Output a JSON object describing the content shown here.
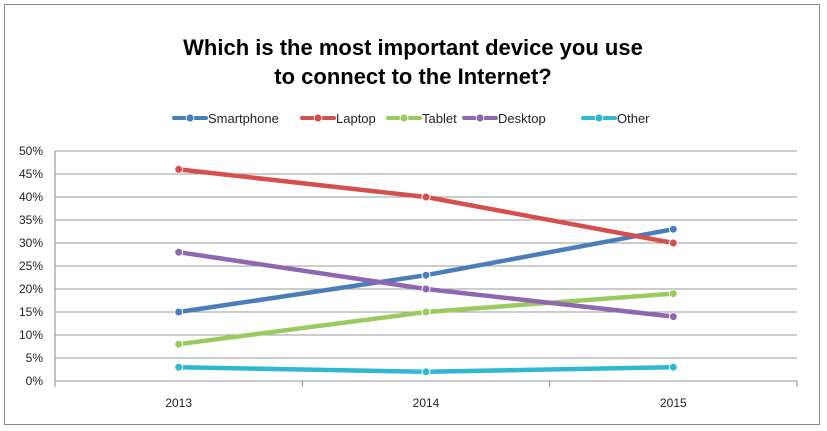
{
  "chart_data": {
    "type": "line",
    "title": [
      "Which is the most important device you use",
      "to connect to the Internet?"
    ],
    "xlabel": "",
    "ylabel": "",
    "categories": [
      "2013",
      "2014",
      "2015"
    ],
    "ylim": [
      0,
      50
    ],
    "yticks": [
      "0%",
      "5%",
      "10%",
      "15%",
      "20%",
      "25%",
      "30%",
      "35%",
      "40%",
      "45%",
      "50%"
    ],
    "grid": true,
    "legend_position": "top",
    "series": [
      {
        "name": "Smartphone",
        "color": "#4a7ebb",
        "values": [
          15,
          23,
          33
        ]
      },
      {
        "name": "Laptop",
        "color": "#d64f4f",
        "values": [
          46,
          40,
          30
        ]
      },
      {
        "name": "Tablet",
        "color": "#9bcb5f",
        "values": [
          8,
          15,
          19
        ]
      },
      {
        "name": "Desktop",
        "color": "#8e67b0",
        "values": [
          28,
          20,
          14
        ]
      },
      {
        "name": "Other",
        "color": "#2fb8cf",
        "values": [
          3,
          2,
          3
        ]
      }
    ]
  }
}
